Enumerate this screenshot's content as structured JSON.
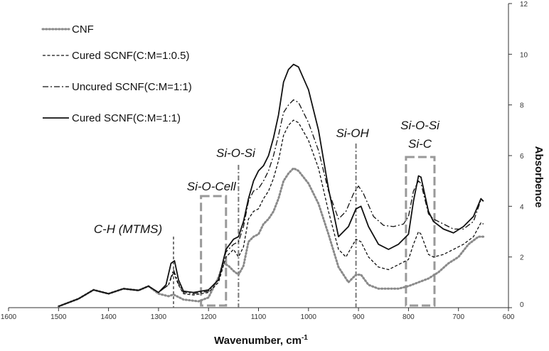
{
  "chart_data": {
    "type": "line",
    "title": "",
    "xlabel": "Wavenumber, cm",
    "xlabel_superscript": "-1",
    "ylabel": "Absorbence",
    "xlim": [
      1600,
      600
    ],
    "ylim": [
      0,
      12
    ],
    "x_reversed": true,
    "x_ticks": [
      "1600",
      "1500",
      "1400",
      "1300",
      "1200",
      "1100",
      "1000",
      "900",
      "800",
      "700",
      "600"
    ],
    "y_ticks": [
      "0",
      "2",
      "4",
      "6",
      "8",
      "10",
      "12"
    ],
    "y_axis_side": "right",
    "grid": false,
    "legend_position": "top-left",
    "series": [
      {
        "name": "CNF",
        "style": "dotted",
        "color": "#8a8a8a",
        "points": [
          [
            1500,
            0.05
          ],
          [
            1460,
            0.35
          ],
          [
            1430,
            0.7
          ],
          [
            1400,
            0.55
          ],
          [
            1370,
            0.75
          ],
          [
            1340,
            0.68
          ],
          [
            1320,
            0.85
          ],
          [
            1300,
            0.55
          ],
          [
            1280,
            0.45
          ],
          [
            1270,
            0.52
          ],
          [
            1250,
            0.32
          ],
          [
            1220,
            0.25
          ],
          [
            1200,
            0.4
          ],
          [
            1180,
            1.2
          ],
          [
            1170,
            1.75
          ],
          [
            1160,
            1.65
          ],
          [
            1150,
            1.45
          ],
          [
            1140,
            1.3
          ],
          [
            1130,
            1.65
          ],
          [
            1120,
            2.6
          ],
          [
            1110,
            2.8
          ],
          [
            1100,
            2.9
          ],
          [
            1090,
            3.3
          ],
          [
            1080,
            3.5
          ],
          [
            1070,
            3.8
          ],
          [
            1060,
            4.3
          ],
          [
            1050,
            5.0
          ],
          [
            1040,
            5.3
          ],
          [
            1030,
            5.5
          ],
          [
            1020,
            5.4
          ],
          [
            1000,
            4.9
          ],
          [
            980,
            4.1
          ],
          [
            960,
            2.9
          ],
          [
            940,
            1.6
          ],
          [
            920,
            1.0
          ],
          [
            905,
            1.3
          ],
          [
            895,
            1.3
          ],
          [
            880,
            0.9
          ],
          [
            860,
            0.75
          ],
          [
            820,
            0.75
          ],
          [
            800,
            0.85
          ],
          [
            780,
            1.0
          ],
          [
            760,
            1.15
          ],
          [
            740,
            1.4
          ],
          [
            720,
            1.75
          ],
          [
            700,
            2.0
          ],
          [
            680,
            2.5
          ],
          [
            660,
            2.8
          ],
          [
            650,
            2.8
          ]
        ]
      },
      {
        "name": "Cured SCNF(C:M=1:0.5)",
        "style": "dashed",
        "color": "#111111",
        "points": [
          [
            1500,
            0.05
          ],
          [
            1460,
            0.35
          ],
          [
            1430,
            0.7
          ],
          [
            1400,
            0.55
          ],
          [
            1370,
            0.75
          ],
          [
            1340,
            0.68
          ],
          [
            1320,
            0.85
          ],
          [
            1300,
            0.6
          ],
          [
            1280,
            0.9
          ],
          [
            1270,
            1.4
          ],
          [
            1260,
            0.9
          ],
          [
            1250,
            0.55
          ],
          [
            1230,
            0.5
          ],
          [
            1200,
            0.6
          ],
          [
            1180,
            1.0
          ],
          [
            1165,
            2.0
          ],
          [
            1150,
            2.3
          ],
          [
            1140,
            2.0
          ],
          [
            1130,
            2.4
          ],
          [
            1120,
            3.5
          ],
          [
            1110,
            3.8
          ],
          [
            1100,
            3.9
          ],
          [
            1090,
            4.3
          ],
          [
            1080,
            4.6
          ],
          [
            1070,
            5.1
          ],
          [
            1060,
            5.8
          ],
          [
            1050,
            6.8
          ],
          [
            1040,
            7.2
          ],
          [
            1030,
            7.4
          ],
          [
            1020,
            7.3
          ],
          [
            1000,
            6.6
          ],
          [
            980,
            5.5
          ],
          [
            960,
            3.8
          ],
          [
            940,
            2.3
          ],
          [
            925,
            2.0
          ],
          [
            905,
            2.7
          ],
          [
            895,
            2.6
          ],
          [
            880,
            2.0
          ],
          [
            860,
            1.6
          ],
          [
            840,
            1.5
          ],
          [
            820,
            1.7
          ],
          [
            800,
            1.9
          ],
          [
            790,
            2.5
          ],
          [
            780,
            3.0
          ],
          [
            775,
            2.9
          ],
          [
            760,
            2.1
          ],
          [
            750,
            2.0
          ],
          [
            730,
            2.1
          ],
          [
            710,
            2.3
          ],
          [
            690,
            2.5
          ],
          [
            670,
            2.8
          ],
          [
            655,
            3.35
          ],
          [
            650,
            3.3
          ]
        ]
      },
      {
        "name": "Uncured SCNF(C:M=1:1)",
        "style": "dashdot",
        "color": "#111111",
        "points": [
          [
            1500,
            0.05
          ],
          [
            1460,
            0.35
          ],
          [
            1430,
            0.7
          ],
          [
            1400,
            0.55
          ],
          [
            1370,
            0.75
          ],
          [
            1340,
            0.68
          ],
          [
            1320,
            0.85
          ],
          [
            1300,
            0.6
          ],
          [
            1280,
            0.9
          ],
          [
            1270,
            1.5
          ],
          [
            1260,
            0.95
          ],
          [
            1250,
            0.6
          ],
          [
            1230,
            0.55
          ],
          [
            1200,
            0.65
          ],
          [
            1180,
            1.1
          ],
          [
            1165,
            2.2
          ],
          [
            1150,
            2.5
          ],
          [
            1140,
            2.6
          ],
          [
            1130,
            3.2
          ],
          [
            1120,
            4.2
          ],
          [
            1110,
            4.6
          ],
          [
            1100,
            4.7
          ],
          [
            1090,
            5.0
          ],
          [
            1080,
            5.4
          ],
          [
            1070,
            6.0
          ],
          [
            1060,
            6.8
          ],
          [
            1050,
            7.7
          ],
          [
            1040,
            8.0
          ],
          [
            1030,
            8.2
          ],
          [
            1020,
            8.1
          ],
          [
            1000,
            7.3
          ],
          [
            980,
            6.2
          ],
          [
            960,
            4.6
          ],
          [
            940,
            3.5
          ],
          [
            925,
            3.8
          ],
          [
            910,
            4.5
          ],
          [
            900,
            4.8
          ],
          [
            890,
            4.5
          ],
          [
            870,
            3.6
          ],
          [
            850,
            3.25
          ],
          [
            830,
            3.2
          ],
          [
            810,
            3.3
          ],
          [
            800,
            3.6
          ],
          [
            790,
            4.6
          ],
          [
            780,
            5.0
          ],
          [
            775,
            4.9
          ],
          [
            760,
            3.7
          ],
          [
            750,
            3.5
          ],
          [
            730,
            3.3
          ],
          [
            710,
            3.1
          ],
          [
            690,
            3.1
          ],
          [
            670,
            3.4
          ],
          [
            655,
            4.25
          ],
          [
            650,
            4.2
          ]
        ]
      },
      {
        "name": "Cured SCNF(C:M=1:1)",
        "style": "solid",
        "color": "#111111",
        "points": [
          [
            1500,
            0.05
          ],
          [
            1460,
            0.35
          ],
          [
            1430,
            0.7
          ],
          [
            1400,
            0.55
          ],
          [
            1370,
            0.75
          ],
          [
            1340,
            0.68
          ],
          [
            1320,
            0.85
          ],
          [
            1300,
            0.6
          ],
          [
            1285,
            0.9
          ],
          [
            1275,
            1.75
          ],
          [
            1268,
            1.85
          ],
          [
            1260,
            1.1
          ],
          [
            1250,
            0.65
          ],
          [
            1230,
            0.6
          ],
          [
            1200,
            0.7
          ],
          [
            1180,
            1.1
          ],
          [
            1165,
            2.3
          ],
          [
            1150,
            2.7
          ],
          [
            1140,
            2.8
          ],
          [
            1130,
            3.4
          ],
          [
            1120,
            4.3
          ],
          [
            1110,
            5.0
          ],
          [
            1100,
            5.4
          ],
          [
            1090,
            5.6
          ],
          [
            1080,
            6.0
          ],
          [
            1070,
            6.7
          ],
          [
            1060,
            7.6
          ],
          [
            1050,
            8.9
          ],
          [
            1040,
            9.4
          ],
          [
            1030,
            9.6
          ],
          [
            1020,
            9.5
          ],
          [
            1000,
            8.6
          ],
          [
            980,
            7.0
          ],
          [
            960,
            4.7
          ],
          [
            940,
            2.8
          ],
          [
            920,
            3.2
          ],
          [
            905,
            3.9
          ],
          [
            895,
            4.0
          ],
          [
            880,
            3.2
          ],
          [
            860,
            2.5
          ],
          [
            840,
            2.3
          ],
          [
            820,
            2.5
          ],
          [
            800,
            2.9
          ],
          [
            790,
            4.2
          ],
          [
            780,
            5.2
          ],
          [
            775,
            5.15
          ],
          [
            760,
            3.8
          ],
          [
            750,
            3.4
          ],
          [
            730,
            3.1
          ],
          [
            710,
            2.95
          ],
          [
            690,
            3.2
          ],
          [
            670,
            3.6
          ],
          [
            655,
            4.3
          ],
          [
            650,
            4.2
          ]
        ]
      }
    ],
    "annotations": [
      {
        "text": "C-H (MTMS)",
        "x": 1270,
        "line": "dashed",
        "line_color": "#777777"
      },
      {
        "text": "Si-O-Cell",
        "x": 1190,
        "box": [
          1215,
          1165
        ],
        "box_color": "#999999"
      },
      {
        "text": "Si-O-Si",
        "x": 1140,
        "line": "dashdot",
        "line_color": "#777777"
      },
      {
        "text": "Si-OH",
        "x": 905,
        "line": "dashdot",
        "line_color": "#777777"
      },
      {
        "text": "Si-O-Si",
        "x": 777,
        "box": [
          805,
          748
        ],
        "box_color": "#999999"
      },
      {
        "text": "Si-C",
        "x": 777
      }
    ]
  }
}
